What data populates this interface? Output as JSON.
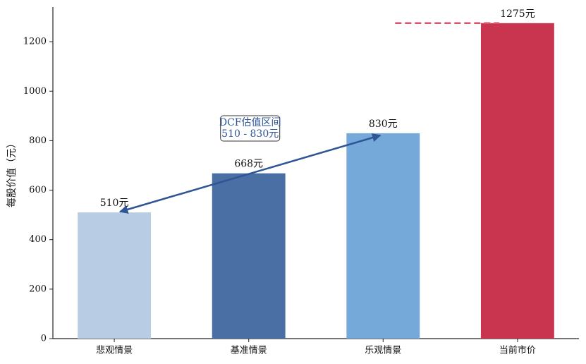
{
  "chart_data": {
    "type": "bar",
    "y_label": "每股价值（元）",
    "categories": [
      "悲观情景",
      "基准情景",
      "乐观情景",
      "当前市价"
    ],
    "values": [
      510,
      668,
      830,
      1275
    ],
    "value_labels": [
      "510元",
      "668元",
      "830元",
      "1275元"
    ],
    "colors": [
      "#b8cce4",
      "#4a6fa5",
      "#74a9d9",
      "#c9344e"
    ],
    "ylim": [
      0,
      1340
    ],
    "yticks": [
      0,
      200,
      400,
      600,
      800,
      1000,
      1200
    ],
    "grid": false,
    "reference_line_color": "#d9546a",
    "annotation": {
      "lines": [
        "DCF估值区间",
        "510 - 830元"
      ],
      "color": "#2f5597"
    }
  }
}
